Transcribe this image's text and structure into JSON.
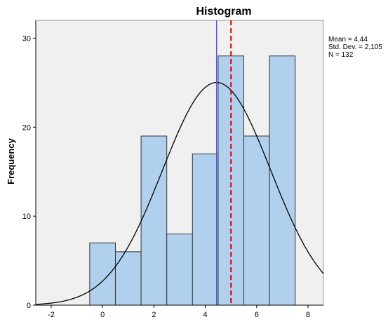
{
  "chart_data": {
    "type": "bar",
    "title": "Histogram",
    "xlabel": "",
    "ylabel": "Frequency",
    "xlim": [
      -2.6,
      8.6
    ],
    "ylim": [
      0,
      32
    ],
    "xticks": [
      -2,
      0,
      2,
      4,
      6,
      8
    ],
    "xtick_labels": [
      "-2",
      "0",
      "2",
      "4",
      "6",
      "8"
    ],
    "yticks": [
      0,
      10,
      20,
      30
    ],
    "ytick_labels": [
      "0",
      "10",
      "20",
      "30"
    ],
    "bin_width": 1,
    "bins": [
      {
        "center": 0,
        "count": 7
      },
      {
        "center": 1,
        "count": 6
      },
      {
        "center": 2,
        "count": 19
      },
      {
        "center": 3,
        "count": 8
      },
      {
        "center": 4,
        "count": 17
      },
      {
        "center": 5,
        "count": 28
      },
      {
        "center": 6,
        "count": 19
      },
      {
        "center": 7,
        "count": 28
      }
    ],
    "normal_curve": {
      "mean": 4.44,
      "sd": 2.105,
      "n": 132
    },
    "reference_lines": [
      {
        "x": 4.44,
        "style": "solid",
        "color": "#5555dd"
      },
      {
        "x": 5.0,
        "style": "dashed",
        "color": "#e00000"
      }
    ],
    "stats": [
      "Mean = 4,44",
      "Std. Dev. = 2,105",
      "N = 132"
    ],
    "legend_position": "top-right",
    "grid": false,
    "colors": {
      "bar_fill": "#b0d0ee",
      "bar_stroke": "#333333",
      "plot_background": "#f0f0f0",
      "curve": "#000000"
    }
  }
}
